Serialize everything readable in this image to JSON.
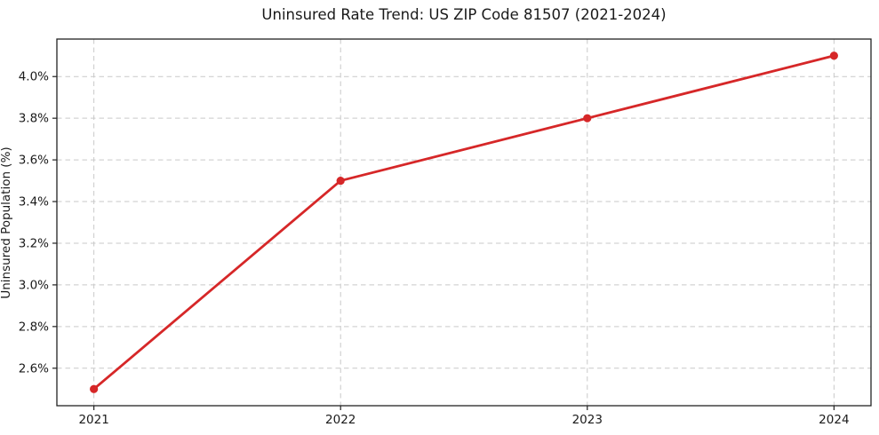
{
  "chart_data": {
    "type": "line",
    "title": "Uninsured Rate Trend: US ZIP Code 81507 (2021-2024)",
    "xlabel": "",
    "ylabel": "Uninsured Population (%)",
    "x": [
      2021,
      2022,
      2023,
      2024
    ],
    "x_tick_labels": [
      "2021",
      "2022",
      "2023",
      "2024"
    ],
    "series": [
      {
        "name": "Uninsured Population (%)",
        "values": [
          2.5,
          3.5,
          3.8,
          4.1
        ]
      }
    ],
    "y_ticks": [
      2.6,
      2.8,
      3.0,
      3.2,
      3.4,
      3.6,
      3.8,
      4.0
    ],
    "y_tick_labels": [
      "2.6%",
      "2.8%",
      "3.0%",
      "3.2%",
      "3.4%",
      "3.6%",
      "3.8%",
      "4.0%"
    ],
    "xlim": [
      2020.85,
      2024.15
    ],
    "ylim": [
      2.42,
      4.18
    ],
    "grid": true,
    "grid_style": "dashed",
    "legend": false,
    "colors": {
      "line": "#d62728",
      "marker": "#d62728",
      "grid": "#c9c9c9",
      "spine": "#222222",
      "text": "#1a1a1a",
      "background": "#ffffff"
    }
  }
}
